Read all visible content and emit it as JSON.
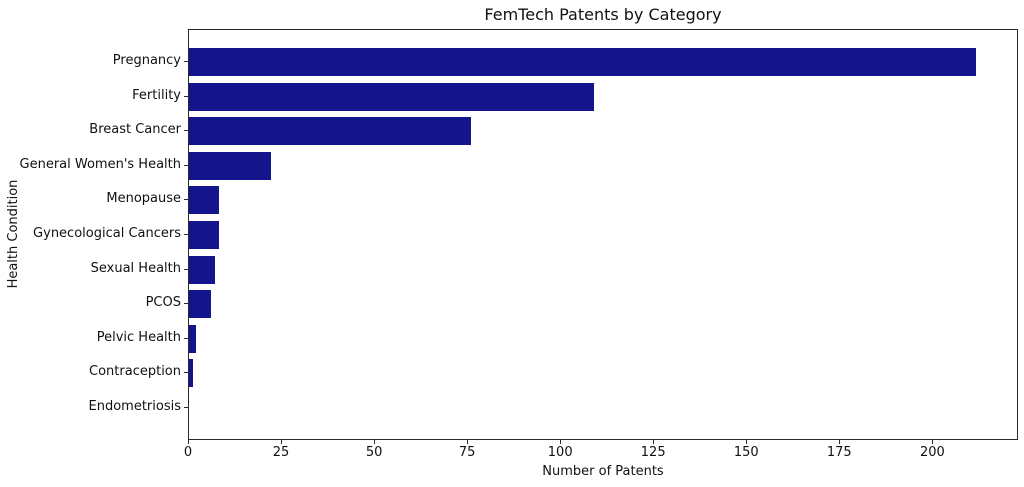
{
  "chart_data": {
    "type": "bar",
    "orientation": "horizontal",
    "title": "FemTech Patents by Category",
    "xlabel": "Number of Patents",
    "ylabel": "Health Condition",
    "categories": [
      "Pregnancy",
      "Fertility",
      "Breast Cancer",
      "General Women's Health",
      "Menopause",
      "Gynecological Cancers",
      "Sexual Health",
      "PCOS",
      "Pelvic Health",
      "Contraception",
      "Endometriosis"
    ],
    "values": [
      212,
      109,
      76,
      22,
      8,
      8,
      7,
      6,
      2,
      1,
      0
    ],
    "xticks": [
      0,
      25,
      50,
      75,
      100,
      125,
      150,
      175,
      200
    ],
    "xlim": [
      0,
      223
    ],
    "grid": false,
    "legend": null,
    "bar_color": "#14148c",
    "axis_color": "#2a2a2a",
    "background_color": "#ffffff"
  }
}
